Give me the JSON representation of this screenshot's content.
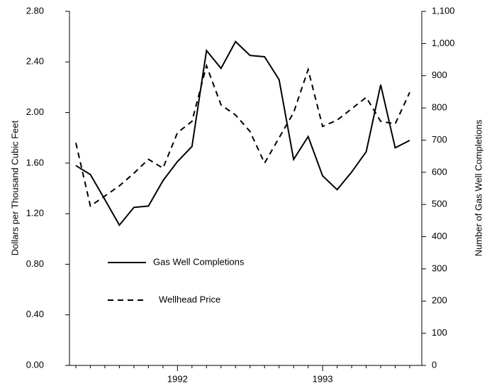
{
  "chart_data": {
    "type": "line",
    "y_axis_label": "Dollars per Thousand Cubic Feet",
    "y2_axis_label": "Number of Gas Well Completions",
    "categories": [
      null,
      null,
      null,
      null,
      null,
      null,
      null,
      "1992",
      null,
      null,
      null,
      null,
      null,
      null,
      null,
      null,
      null,
      "1993",
      null,
      null,
      null,
      null,
      null,
      null
    ],
    "series": [
      {
        "name": "Gas Well Completions",
        "color": "#000000",
        "dashed": false,
        "axis": "y2",
        "values": [
          621,
          593,
          515,
          436,
          491,
          495,
          574,
          633,
          680,
          978,
          923,
          1006,
          963,
          959,
          888,
          640,
          711,
          589,
          546,
          601,
          664,
          872,
          676,
          699
        ]
      },
      {
        "name": "Wellhead Price",
        "color": "#000000",
        "dashed": true,
        "values": [
          1.76,
          1.26,
          1.34,
          1.42,
          1.52,
          1.63,
          1.56,
          1.84,
          1.93,
          2.37,
          2.06,
          1.98,
          1.85,
          1.6,
          1.8,
          2.0,
          2.34,
          1.89,
          1.94,
          2.03,
          2.12,
          1.93,
          1.91,
          2.16
        ]
      }
    ],
    "ylim": [
      0,
      2.8
    ],
    "yticks": [
      {
        "value": 0,
        "label": "0.00"
      },
      {
        "value": 0.4,
        "label": "0.40"
      },
      {
        "value": 0.8,
        "label": "0.80"
      },
      {
        "value": 1.2,
        "label": "1.20"
      },
      {
        "value": 1.6,
        "label": "1.60"
      },
      {
        "value": 2.0,
        "label": "2.00"
      },
      {
        "value": 2.4,
        "label": "2.40"
      },
      {
        "value": 2.8,
        "label": "2.80"
      }
    ],
    "y2lim": [
      0,
      1100
    ],
    "y2ticks": [
      0,
      100,
      200,
      300,
      400,
      500,
      600,
      700,
      800,
      900,
      {
        "value": 1000,
        "label": "1,000"
      },
      {
        "value": 1100,
        "label": "1,100"
      }
    ],
    "legend": "lower left",
    "grid": false
  }
}
